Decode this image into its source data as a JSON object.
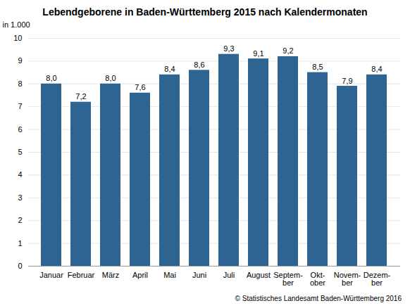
{
  "chart_data": {
    "type": "bar",
    "title": "Lebendgeborene in Baden-Württemberg 2015 nach Kalendermonaten",
    "ylabel": "in 1.000",
    "caption": "© Statistisches Landesamt Baden-Württemberg 2016",
    "categories": [
      "Januar",
      "Februar",
      "März",
      "April",
      "Mai",
      "Juni",
      "Juli",
      "August",
      "Septem-\nber",
      "Okt-\nober",
      "Novem-\nber",
      "Dezem-\nber"
    ],
    "values": [
      8.0,
      7.2,
      8.0,
      7.6,
      8.4,
      8.6,
      9.3,
      9.1,
      9.2,
      8.5,
      7.9,
      8.4
    ],
    "value_labels": [
      "8,0",
      "7,2",
      "8,0",
      "7,6",
      "8,4",
      "8,6",
      "9,3",
      "9,1",
      "9,2",
      "8,5",
      "7,9",
      "8,4"
    ],
    "data_labels": true,
    "color": "#2E6491",
    "ylim": [
      0,
      10
    ],
    "yticks": [
      0,
      1,
      2,
      3,
      4,
      5,
      6,
      7,
      8,
      9,
      10
    ],
    "grid": true
  }
}
